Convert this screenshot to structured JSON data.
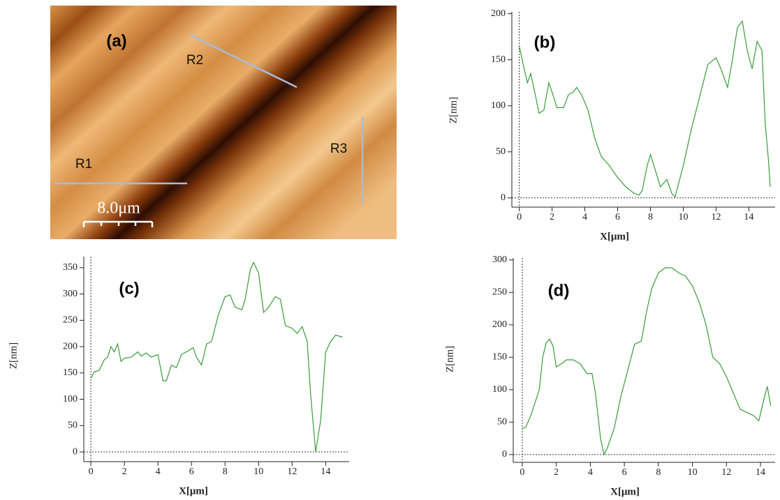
{
  "image": {
    "panel": "(a)",
    "regions": [
      "R1",
      "R2",
      "R3"
    ],
    "scale": "8.0μm"
  },
  "chart_data": [
    {
      "type": "line",
      "title": "(b)",
      "xlabel": "X[μm]",
      "ylabel": "Z[nm]",
      "color": "#3a9a3a",
      "xlim": [
        -0.45,
        15.6
      ],
      "ylim": [
        -10,
        202
      ],
      "xticks": [
        0,
        2,
        4,
        6,
        8,
        10,
        12,
        14
      ],
      "yticks": [
        0,
        50,
        100,
        150,
        200
      ],
      "x": [
        0,
        0.3,
        0.5,
        0.7,
        1.0,
        1.2,
        1.5,
        1.8,
        2.0,
        2.3,
        2.7,
        3.0,
        3.3,
        3.5,
        3.8,
        4.2,
        4.6,
        5.0,
        5.5,
        6.0,
        6.5,
        7.0,
        7.3,
        7.5,
        7.8,
        8.0,
        8.3,
        8.6,
        9.0,
        9.3,
        9.5,
        10.0,
        10.5,
        11.0,
        11.5,
        12.0,
        12.3,
        12.7,
        13.0,
        13.3,
        13.6,
        13.9,
        14.2,
        14.5,
        14.8,
        15.0,
        15.2,
        15.3
      ],
      "y": [
        165,
        140,
        125,
        135,
        110,
        92,
        95,
        125,
        115,
        98,
        98,
        112,
        115,
        120,
        112,
        95,
        65,
        45,
        35,
        22,
        12,
        5,
        3,
        8,
        35,
        47,
        30,
        12,
        20,
        5,
        1,
        35,
        75,
        110,
        145,
        152,
        140,
        120,
        150,
        185,
        192,
        160,
        140,
        170,
        160,
        80,
        40,
        12
      ]
    },
    {
      "type": "line",
      "title": "(c)",
      "xlabel": "X[μm]",
      "ylabel": "Z[nm]",
      "color": "#3a9a3a",
      "xlim": [
        -0.42,
        15.4
      ],
      "ylim": [
        -18.5,
        371
      ],
      "xticks": [
        0,
        2,
        4,
        6,
        8,
        10,
        12,
        14
      ],
      "yticks": [
        0,
        50,
        100,
        150,
        200,
        250,
        300,
        350
      ],
      "x": [
        0,
        0.2,
        0.5,
        0.8,
        1.0,
        1.2,
        1.4,
        1.6,
        1.8,
        2.0,
        2.4,
        2.8,
        3.0,
        3.3,
        3.6,
        4.0,
        4.3,
        4.5,
        4.8,
        5.1,
        5.4,
        5.8,
        6.1,
        6.3,
        6.6,
        6.9,
        7.2,
        7.6,
        8.0,
        8.3,
        8.6,
        9.0,
        9.2,
        9.5,
        9.7,
        10.0,
        10.3,
        10.6,
        11.0,
        11.3,
        11.6,
        12.0,
        12.3,
        12.6,
        12.9,
        13.1,
        13.4,
        13.7,
        14.0,
        14.3,
        14.6,
        15.0
      ],
      "y": [
        140,
        152,
        155,
        175,
        180,
        200,
        190,
        205,
        172,
        178,
        180,
        190,
        182,
        188,
        180,
        185,
        135,
        135,
        165,
        160,
        185,
        192,
        198,
        180,
        165,
        205,
        210,
        260,
        295,
        298,
        275,
        270,
        290,
        345,
        360,
        340,
        265,
        275,
        295,
        290,
        240,
        235,
        225,
        238,
        210,
        110,
        0,
        60,
        190,
        210,
        222,
        218
      ]
    },
    {
      "type": "line",
      "title": "(d)",
      "xlabel": "X[μm]",
      "ylabel": "Z[nm]",
      "color": "#3a9a3a",
      "xlim": [
        -0.53,
        14.86
      ],
      "ylim": [
        -12,
        303
      ],
      "xticks": [
        0,
        2,
        4,
        6,
        8,
        10,
        12,
        14
      ],
      "yticks": [
        0,
        50,
        100,
        150,
        200,
        250,
        300
      ],
      "x": [
        0,
        0.2,
        0.5,
        1.0,
        1.2,
        1.4,
        1.6,
        1.8,
        2.0,
        2.3,
        2.6,
        3.0,
        3.4,
        3.8,
        4.1,
        4.3,
        4.6,
        4.8,
        5.0,
        5.4,
        5.8,
        6.2,
        6.6,
        7.0,
        7.3,
        7.6,
        8.0,
        8.4,
        8.8,
        9.2,
        9.6,
        10.0,
        10.4,
        10.8,
        11.2,
        11.6,
        12.0,
        12.4,
        12.8,
        13.2,
        13.6,
        13.9,
        14.2,
        14.4,
        14.6
      ],
      "y": [
        40,
        42,
        60,
        100,
        150,
        172,
        178,
        168,
        135,
        140,
        146,
        146,
        140,
        125,
        125,
        95,
        25,
        0,
        10,
        40,
        90,
        130,
        170,
        175,
        220,
        255,
        280,
        288,
        288,
        280,
        275,
        260,
        235,
        200,
        150,
        140,
        120,
        95,
        70,
        65,
        60,
        52,
        85,
        105,
        75
      ]
    }
  ]
}
